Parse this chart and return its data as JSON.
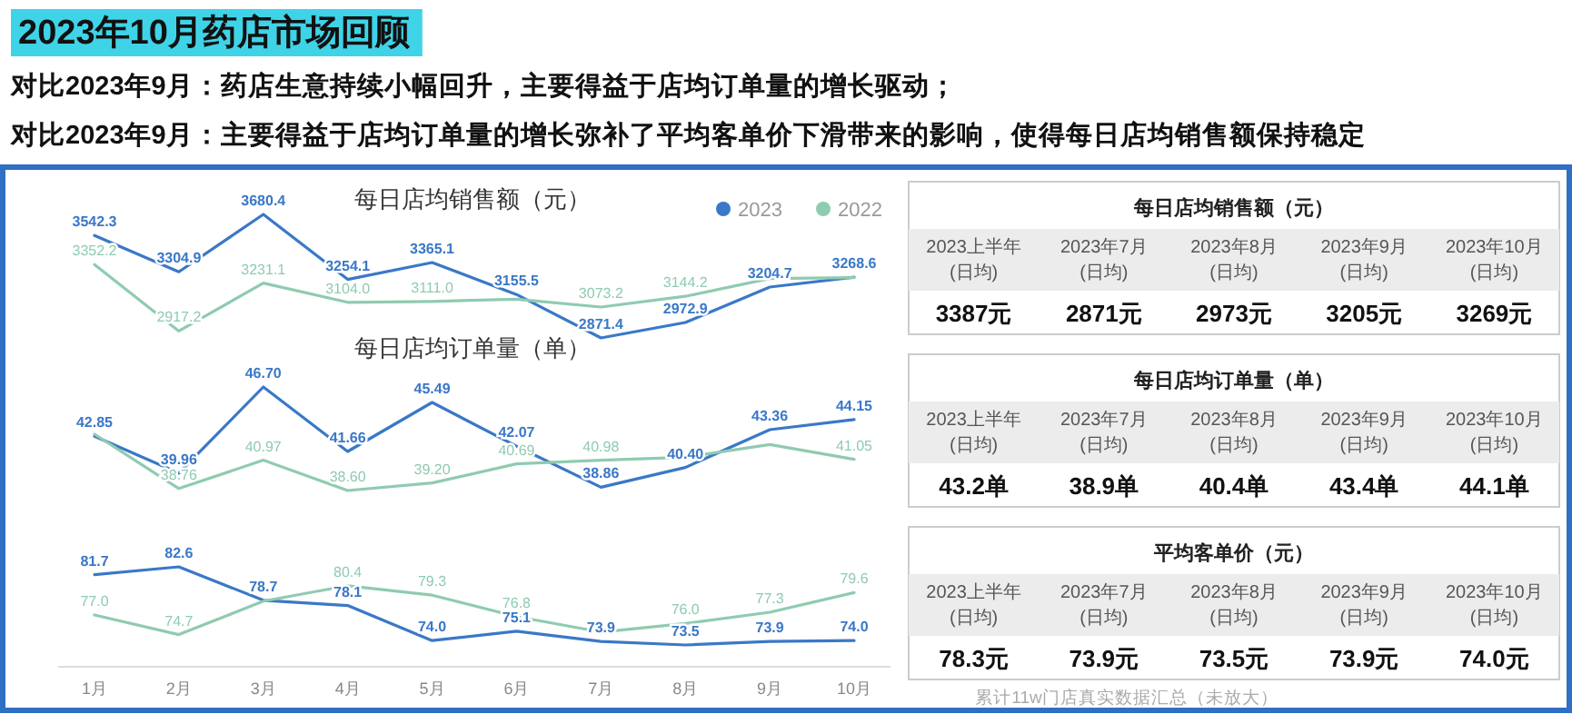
{
  "chart_data": [
    {
      "type": "other",
      "title": "2023年10月药店市场回顾",
      "annotations": [
        "对比2023年9月：药店生意持续小幅回升，主要得益于店均订单量的增长驱动；",
        "对比2023年9月：主要得益于店均订单量的增长弥补了平均客单价下滑带来的影响，使得每日店均销售额保持稳定"
      ]
    },
    {
      "type": "line",
      "title": "每日店均销售额（元）",
      "categories": [
        null,
        null,
        null,
        null,
        null,
        null,
        null,
        null,
        null,
        null
      ],
      "legend": "top right",
      "tick_labels": false,
      "series": [
        {
          "name": "2023",
          "color": "#3a78c8",
          "values": [
            3542.3,
            3304.9,
            3680.4,
            3254.1,
            3365.1,
            3155.5,
            2871.4,
            2972.9,
            3204.7,
            3268.6
          ],
          "value_labels": [
            "3542.3",
            "3304.9",
            "3680.4",
            "3254.1",
            "3365.1",
            "3155.5",
            "2871.4",
            "2972.9",
            "3204.7",
            "3268.6"
          ]
        },
        {
          "name": "2022",
          "color": "#8fcbb0",
          "values": [
            3352.2,
            2917.2,
            3231.1,
            3104.0,
            3111.0,
            3125,
            3073.2,
            3144.2,
            3260,
            3266
          ],
          "value_labels": [
            "3352.2",
            "2917.2",
            "3231.1",
            "3104.0",
            "3111.0",
            null,
            "3073.2",
            "3144.2",
            null,
            null
          ]
        }
      ]
    },
    {
      "type": "line",
      "title": "每日店均订单量（单）",
      "categories": [
        null,
        null,
        null,
        null,
        null,
        null,
        null,
        null,
        null,
        null
      ],
      "tick_labels": false,
      "series": [
        {
          "name": "2023",
          "color": "#3a78c8",
          "values": [
            42.85,
            39.96,
            46.7,
            41.66,
            45.49,
            42.07,
            38.86,
            40.4,
            43.36,
            44.15
          ],
          "value_labels": [
            "42.85",
            "39.96",
            "46.70",
            "41.66",
            "45.49",
            "42.07",
            "38.86",
            "40.40",
            "43.36",
            "44.15"
          ]
        },
        {
          "name": "2022",
          "color": "#8fcbb0",
          "values": [
            43.0,
            38.76,
            40.97,
            38.6,
            39.2,
            40.69,
            40.98,
            41.2,
            42.2,
            41.05
          ],
          "value_labels": [
            null,
            "38.76",
            "40.97",
            "38.60",
            "39.20",
            "40.69",
            "40.98",
            null,
            null,
            "41.05"
          ]
        }
      ]
    },
    {
      "type": "line",
      "categories": [
        "1月",
        "2月",
        "3月",
        "4月",
        "5月",
        "6月",
        "7月",
        "8月",
        "9月",
        "10月"
      ],
      "tick_labels": "x",
      "series": [
        {
          "name": "2023",
          "color": "#3a78c8",
          "values": [
            81.7,
            82.6,
            78.7,
            78.1,
            74.0,
            75.1,
            73.9,
            73.5,
            73.9,
            74.0
          ],
          "value_labels": [
            "81.7",
            "82.6",
            "78.7",
            "78.1",
            "74.0",
            "75.1",
            "73.9",
            "73.5",
            "73.9",
            "74.0"
          ]
        },
        {
          "name": "2022",
          "color": "#8fcbb0",
          "values": [
            77.0,
            74.7,
            78.6,
            80.4,
            79.3,
            76.8,
            75.0,
            76.0,
            77.3,
            79.6
          ],
          "value_labels": [
            "77.0",
            "74.7",
            null,
            "80.4",
            "79.3",
            "76.8",
            null,
            "76.0",
            "77.3",
            "79.6"
          ]
        }
      ]
    },
    {
      "type": "other",
      "title": "每日店均销售额（元）",
      "categories": [
        "2023上半年\n(日均)",
        "2023年7月\n(日均)",
        "2023年8月\n(日均)",
        "2023年9月\n(日均)",
        "2023年10月\n(日均)"
      ],
      "value_labels": [
        "3387元",
        "2871元",
        "2973元",
        "3205元",
        "3269元"
      ]
    },
    {
      "type": "other",
      "title": "每日店均订单量（单）",
      "categories": [
        "2023上半年\n(日均)",
        "2023年7月\n(日均)",
        "2023年8月\n(日均)",
        "2023年9月\n(日均)",
        "2023年10月\n(日均)"
      ],
      "value_labels": [
        "43.2单",
        "38.9单",
        "40.4单",
        "43.4单",
        "44.1单"
      ]
    },
    {
      "type": "other",
      "title": "平均客单价（元）",
      "categories": [
        "2023上半年\n(日均)",
        "2023年7月\n(日均)",
        "2023年8月\n(日均)",
        "2023年9月\n(日均)",
        "2023年10月\n(日均)"
      ],
      "value_labels": [
        "78.3元",
        "73.9元",
        "73.5元",
        "73.9元",
        "74.0元"
      ],
      "annotations": [
        "累计11w门店真实数据汇总（未放大）"
      ]
    }
  ]
}
